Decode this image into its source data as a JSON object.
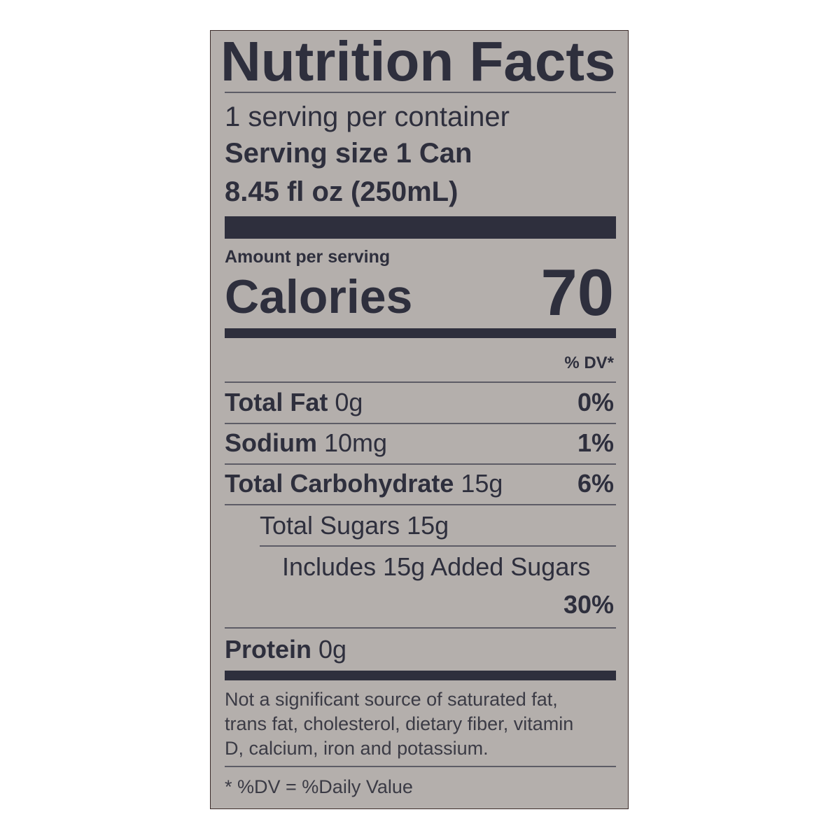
{
  "label": {
    "title": "Nutrition Facts",
    "servings_per_container": "1 serving per container",
    "serving_size_label": "Serving size",
    "serving_size_value": "1 Can",
    "serving_size_volume": "8.45 fl oz (250mL)",
    "amount_per_serving": "Amount per serving",
    "calories_label": "Calories",
    "calories_value": "70",
    "dv_header": "% DV*",
    "nutrients": [
      {
        "name": "Total Fat",
        "amount": "0g",
        "dv": "0%"
      },
      {
        "name": "Sodium",
        "amount": "10mg",
        "dv": "1%"
      },
      {
        "name": "Total Carbohydrate",
        "amount": "15g",
        "dv": "6%"
      },
      {
        "name": "Total Sugars",
        "amount": "15g"
      },
      {
        "name": "Includes 15g Added Sugars",
        "dv": "30%"
      },
      {
        "name": "Protein",
        "amount": "0g"
      }
    ],
    "footnote": [
      "Not a significant source of saturated fat,",
      "trans fat, cholesterol, dietary fiber, vitamin",
      "D, calcium, iron and potassium."
    ],
    "dv_note": "* %DV = %Daily Value",
    "colors": {
      "background": "#b4afac",
      "ink": "#2e2f3d"
    }
  }
}
